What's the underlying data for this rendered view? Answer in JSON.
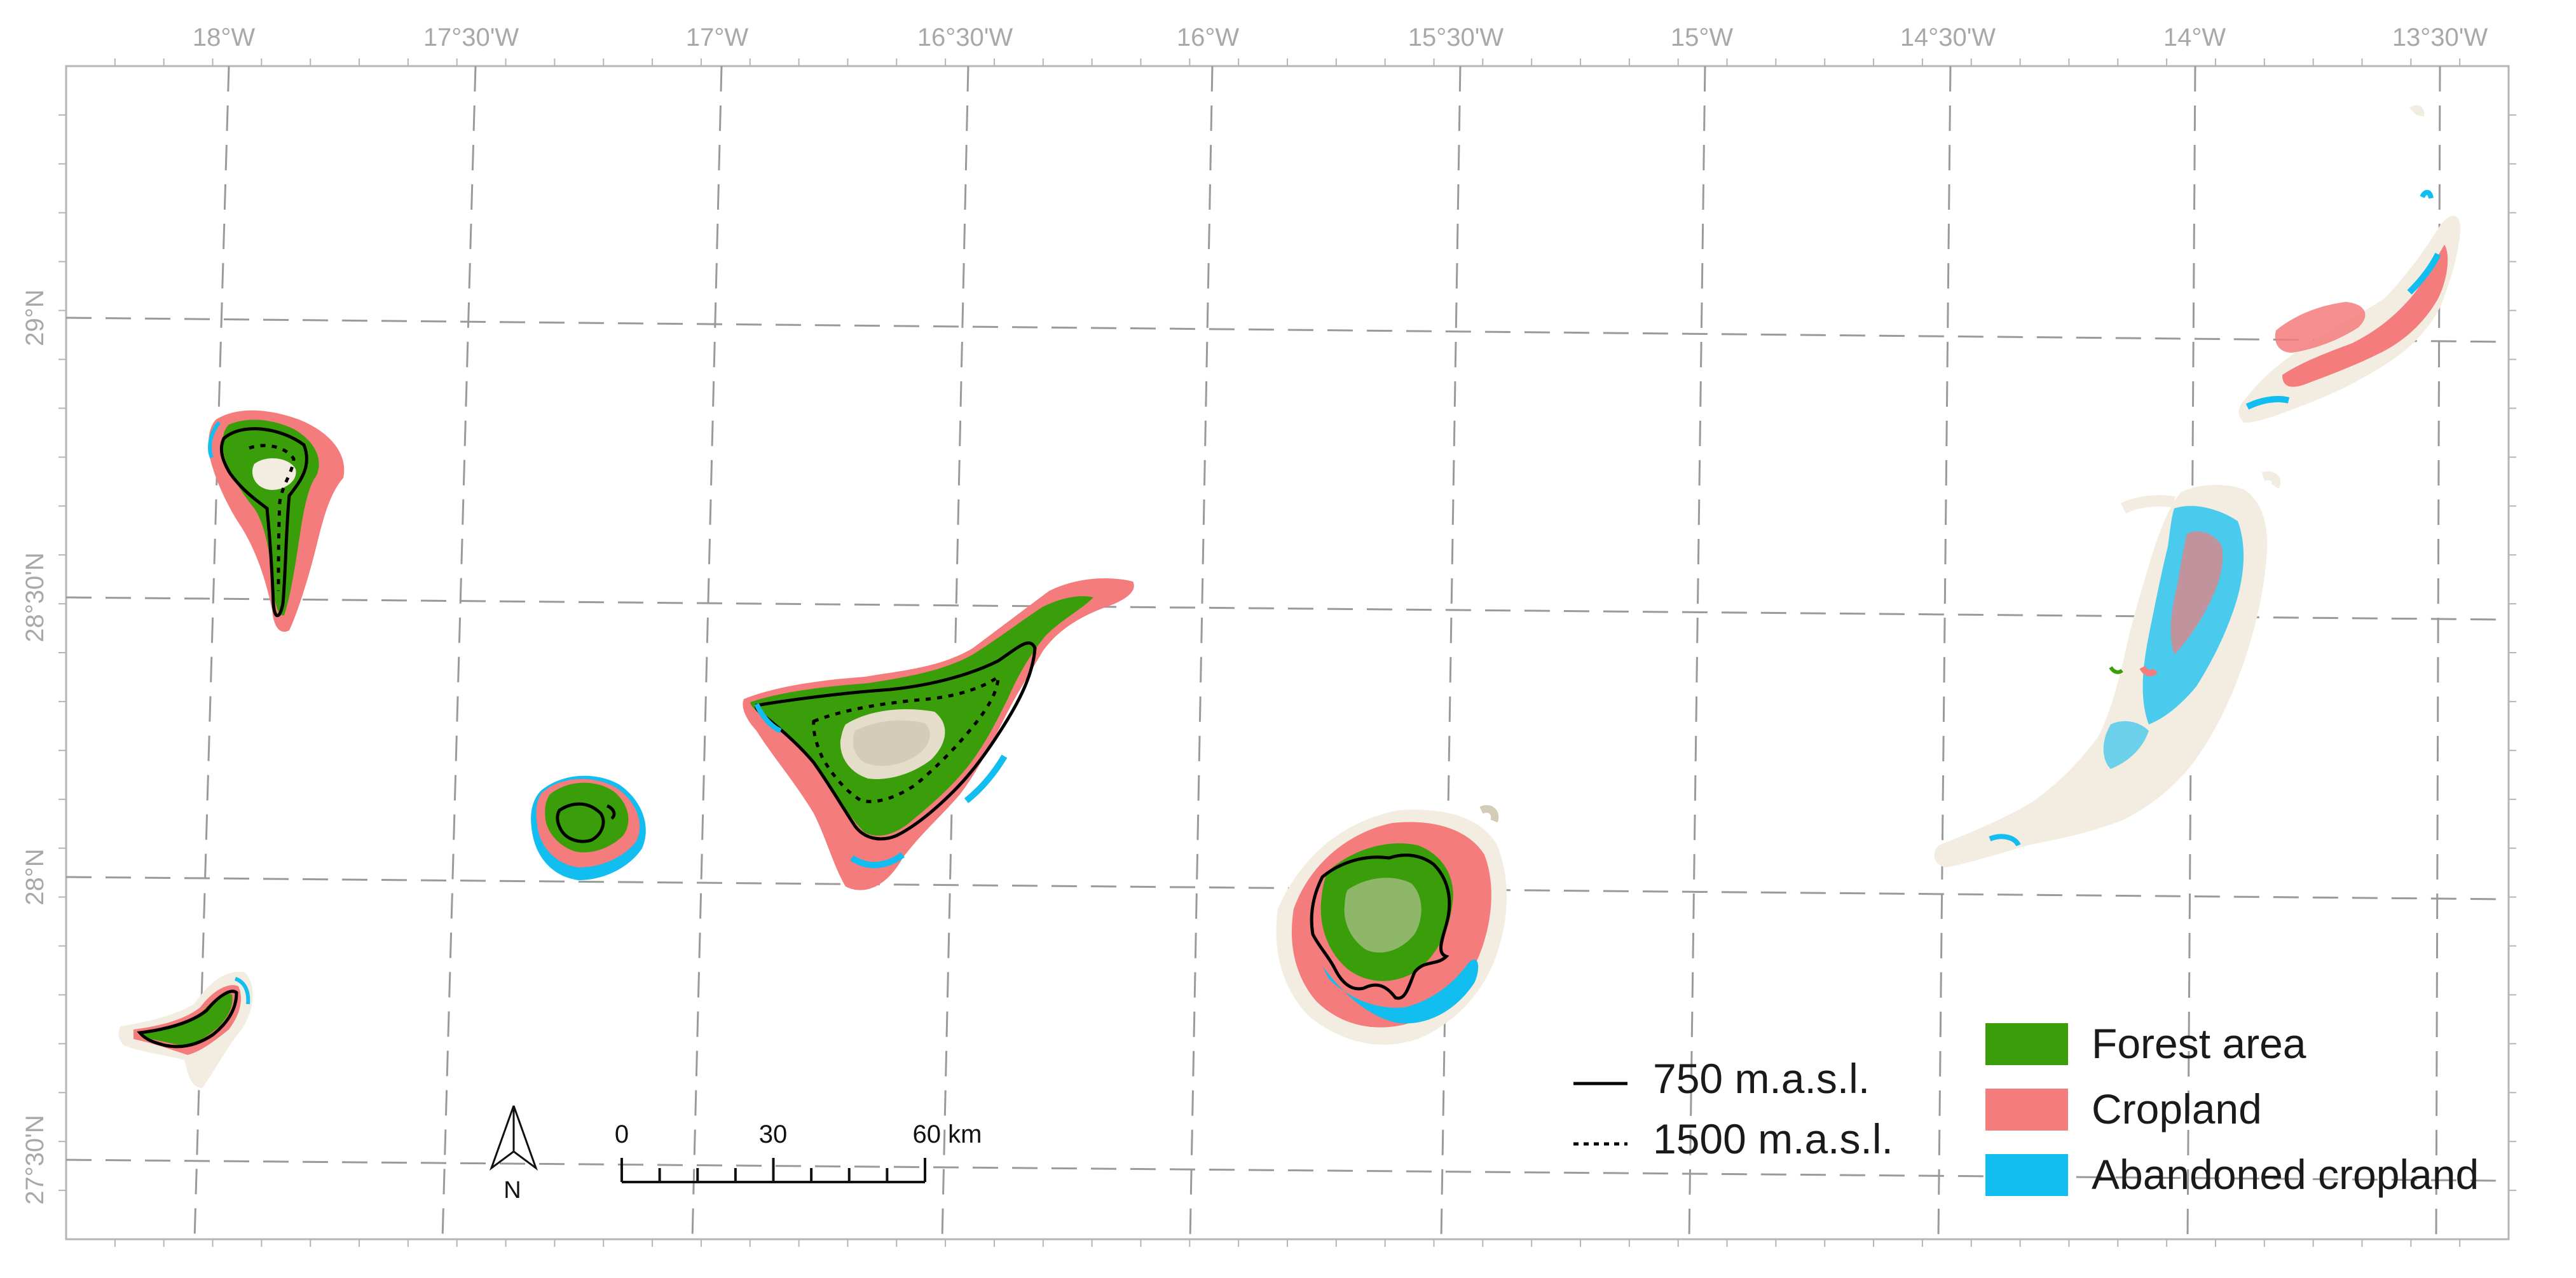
{
  "map": {
    "longitude_labels": [
      "18°W",
      "17°30'W",
      "17°W",
      "16°30'W",
      "16°W",
      "15°30'W",
      "15°W",
      "14°30'W",
      "14°W",
      "13°30'W"
    ],
    "latitude_labels": [
      "29°N",
      "28°30'N",
      "28°N",
      "27°30'N"
    ],
    "islands": [
      "la-palma",
      "el-hierro",
      "la-gomera",
      "tenerife",
      "gran-canaria",
      "fuerteventura",
      "lanzarote"
    ]
  },
  "legend": {
    "contours": [
      {
        "label": "750 m.a.s.l.",
        "style": "solid"
      },
      {
        "label": "1500 m.a.s.l.",
        "style": "dotted"
      }
    ],
    "landcover": [
      {
        "label": "Forest area",
        "color": "#3a9e0a"
      },
      {
        "label": "Cropland",
        "color": "#f47c7c"
      },
      {
        "label": "Abandoned cropland",
        "color": "#12bdf0"
      }
    ]
  },
  "scale_bar": {
    "labels": [
      "0",
      "30",
      "60 km"
    ]
  },
  "north_arrow": {
    "label": "N"
  },
  "colors": {
    "land_base": "#f2ede0",
    "relief": "#d4ccb8",
    "grid": "#9a9a9a",
    "frame": "#b5b5b5"
  }
}
